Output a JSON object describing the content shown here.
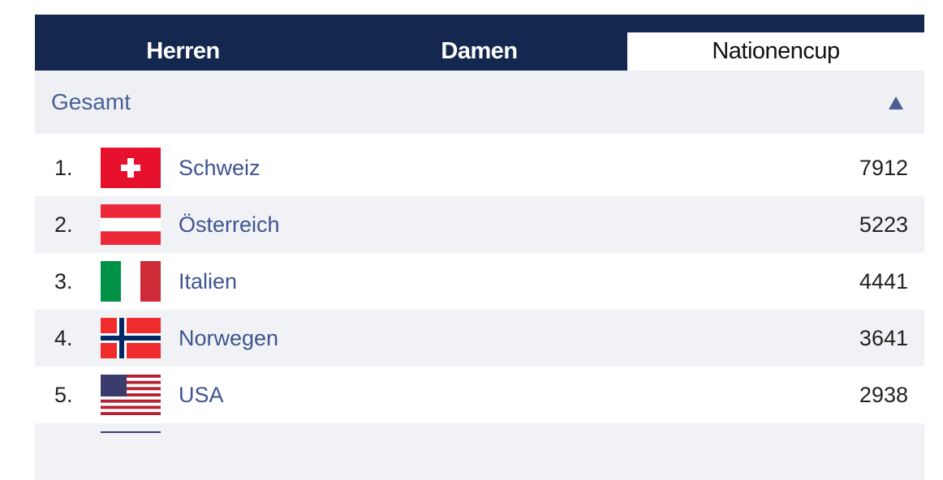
{
  "tabs": [
    "Herren",
    "Damen",
    "Nationencup"
  ],
  "section": {
    "title": "Gesamt"
  },
  "rows": [
    {
      "rank": "1.",
      "country": "Schweiz",
      "points": 7912
    },
    {
      "rank": "2.",
      "country": "Österreich",
      "points": 5223
    },
    {
      "rank": "3.",
      "country": "Italien",
      "points": 4441
    },
    {
      "rank": "4.",
      "country": "Norwegen",
      "points": 3641
    },
    {
      "rank": "5.",
      "country": "USA",
      "points": 2938
    }
  ]
}
